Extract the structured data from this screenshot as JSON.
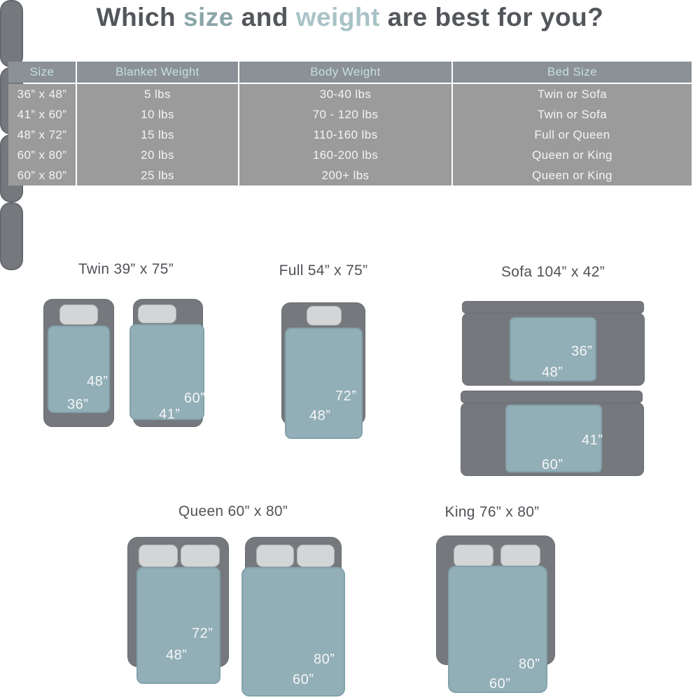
{
  "title": {
    "part1": "Which ",
    "size_word": "size",
    "part2": " and ",
    "weight_word": "weight",
    "part3": " are best for you?"
  },
  "table": {
    "columns": [
      "Size",
      "Blanket Weight",
      "Body Weight",
      "Bed Size"
    ],
    "rows": [
      [
        "36” x 48”",
        "5 lbs",
        "30-40 lbs",
        "Twin or Sofa"
      ],
      [
        "41” x 60”",
        "10 lbs",
        "70 - 120 lbs",
        "Twin or Sofa"
      ],
      [
        "48” x 72”",
        "15 lbs",
        "110-160 lbs",
        "Full or Queen"
      ],
      [
        "60” x 80”",
        "20 lbs",
        "160-200 lbs",
        "Queen or King"
      ],
      [
        "60” x 80”",
        "25 lbs",
        "200+ lbs",
        "Queen or King"
      ]
    ]
  },
  "diagrams": {
    "twin": {
      "title": "Twin 39” x 75”",
      "blanket1": {
        "height_label": "48”",
        "width_label": "36”"
      },
      "blanket2": {
        "height_label": "60”",
        "width_label": "41”"
      }
    },
    "full": {
      "title": "Full 54” x 75”",
      "blanket": {
        "height_label": "72”",
        "width_label": "48”"
      }
    },
    "sofa": {
      "title": "Sofa 104” x 42”",
      "blanket1": {
        "height_label": "36”",
        "width_label": "48”"
      },
      "blanket2": {
        "height_label": "41”",
        "width_label": "60”"
      }
    },
    "queen": {
      "title": "Queen 60” x 80”",
      "blanket1": {
        "height_label": "72”",
        "width_label": "48”"
      },
      "blanket2": {
        "height_label": "80”",
        "width_label": "60”"
      }
    },
    "king": {
      "title": "King 76” x 80”",
      "blanket": {
        "height_label": "80”",
        "width_label": "60”"
      }
    }
  },
  "colors": {
    "title_text": "#53565b",
    "size_word": "#8aa5a8",
    "weight_word": "#a9c3c8",
    "table_header_bg": "#8b9196",
    "table_header_text": "#c6dfe3",
    "table_row_bg": "#9b9b9b",
    "table_row_text": "#f4f4f4",
    "bed_frame": "#75787c",
    "pillow": "#d3d5d6",
    "blanket": "#92aeb6",
    "blanket_label_text": "#f4f7f8"
  }
}
